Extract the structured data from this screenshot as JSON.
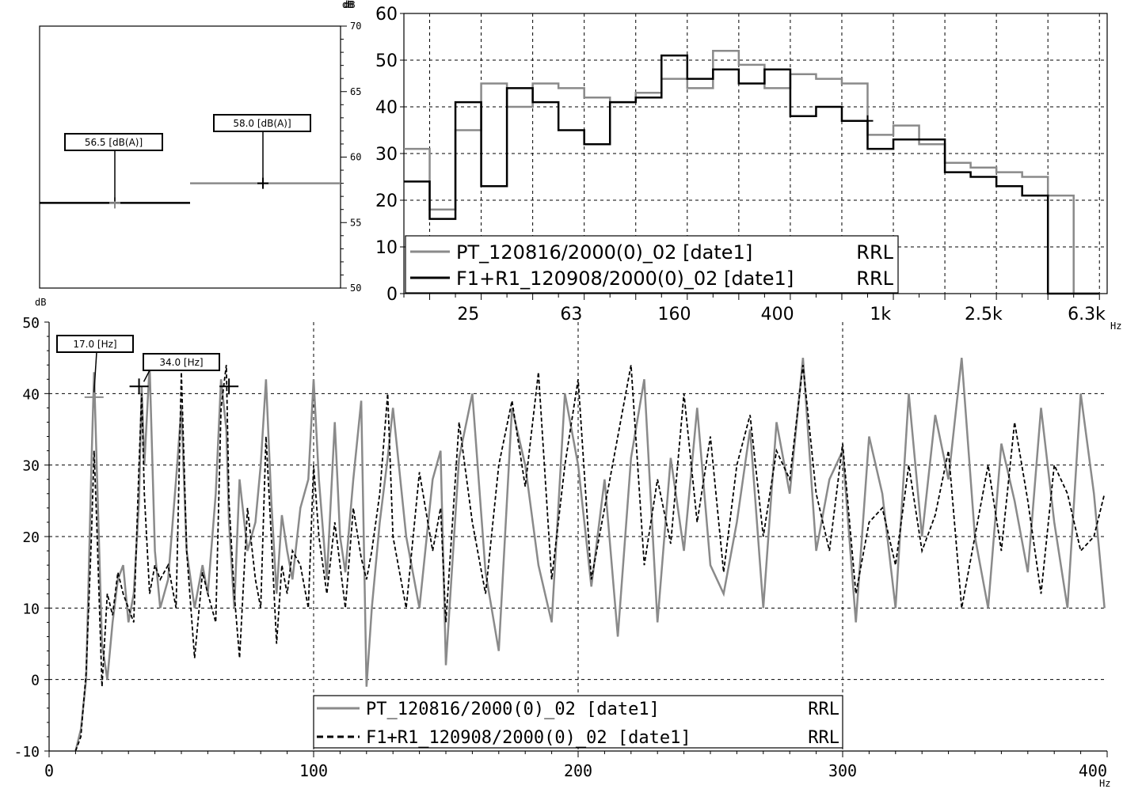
{
  "chart_data": [
    {
      "id": "overall",
      "type": "bar",
      "ylabel": "dB",
      "ylim": [
        50,
        70
      ],
      "ticks": [
        "50",
        "55",
        "60",
        "65",
        "70"
      ],
      "grid": false,
      "series": [
        {
          "name": "PT_120816/2000(0)_02 [date1] RRL",
          "value": 56.5,
          "label": "56.5  [dB(A)]",
          "color": "#000000"
        },
        {
          "name": "F1+R1_120908/2000(0)_02 [date1] RRL",
          "value": 58.0,
          "label": "58.0  [dB(A)]",
          "color": "#8a8a8a"
        }
      ]
    },
    {
      "id": "octave",
      "type": "line",
      "ylabel": "dB",
      "ylim": [
        0,
        60
      ],
      "yticks": [
        "0",
        "10",
        "20",
        "30",
        "40",
        "50",
        "60"
      ],
      "xscale": "log-bands",
      "xlabel": "Hz",
      "xticks": [
        "25",
        "63",
        "160",
        "400",
        "1k",
        "2.5k",
        "6.3k"
      ],
      "xtick_band_index": [
        2,
        6,
        10,
        14,
        18,
        22,
        26
      ],
      "grid": true,
      "legend_position": "bottom-left",
      "bands": [
        "16",
        "20",
        "25",
        "31.5",
        "40",
        "50",
        "63",
        "80",
        "100",
        "125",
        "160",
        "200",
        "250",
        "315",
        "400",
        "500",
        "630",
        "800",
        "1k",
        "1.25k",
        "1.6k",
        "2k",
        "2.5k",
        "3.15k",
        "4k",
        "5k",
        "6.3k"
      ],
      "series": [
        {
          "name": "PT_120816/2000(0)_02 [date1]",
          "tag": "RRL",
          "color": "#8a8a8a",
          "values": [
            31,
            18,
            35,
            45,
            40,
            45,
            44,
            42,
            41,
            43,
            46,
            44,
            52,
            49,
            44,
            47,
            46,
            45,
            34,
            36,
            32,
            28,
            27,
            26,
            25,
            21,
            0
          ]
        },
        {
          "name": "F1+R1_120908/2000(0)_02 [date1]",
          "tag": "RRL",
          "color": "#000000",
          "values": [
            24,
            16,
            41,
            23,
            44,
            41,
            35,
            32,
            41,
            42,
            51,
            46,
            48,
            45,
            48,
            38,
            40,
            37,
            31,
            33,
            33,
            26,
            25,
            23,
            21,
            0,
            0
          ]
        }
      ],
      "cursor": {
        "band": 18,
        "value": 37
      }
    },
    {
      "id": "narrowband",
      "type": "line",
      "ylabel": "dB",
      "xlabel": "Hz",
      "xlim": [
        0,
        400
      ],
      "ylim": [
        -10,
        50
      ],
      "xticks": [
        "0",
        "100",
        "200",
        "300",
        "400"
      ],
      "yticks": [
        "-10",
        "0",
        "10",
        "20",
        "30",
        "40",
        "50"
      ],
      "grid": true,
      "legend_position": "bottom-center",
      "series": [
        {
          "name": "PT_120816/2000(0)_02  [date1]",
          "tag": "RRL",
          "color": "#8a8a8a",
          "dash": "solid",
          "x": [
            10,
            12,
            14,
            16,
            17,
            18,
            20,
            22,
            24,
            26,
            28,
            30,
            32,
            34,
            35,
            36,
            38,
            40,
            42,
            45,
            48,
            50,
            52,
            55,
            58,
            60,
            63,
            65,
            67,
            68,
            70,
            72,
            75,
            78,
            80,
            82,
            84,
            86,
            88,
            90,
            92,
            95,
            98,
            100,
            102,
            105,
            108,
            110,
            112,
            115,
            118,
            120,
            122,
            125,
            128,
            130,
            135,
            140,
            145,
            148,
            150,
            155,
            160,
            165,
            170,
            175,
            180,
            185,
            190,
            195,
            200,
            205,
            210,
            215,
            220,
            225,
            230,
            235,
            240,
            245,
            250,
            255,
            260,
            265,
            270,
            275,
            280,
            285,
            290,
            295,
            300,
            305,
            310,
            315,
            320,
            325,
            330,
            335,
            340,
            345,
            350,
            355,
            360,
            365,
            370,
            375,
            380,
            385,
            390,
            395,
            399
          ],
          "y": [
            -10,
            -7,
            0,
            30,
            43,
            30,
            5,
            0,
            8,
            14,
            16,
            8,
            12,
            25,
            41,
            30,
            44,
            18,
            10,
            14,
            28,
            38,
            18,
            10,
            16,
            12,
            26,
            42,
            35,
            22,
            10,
            28,
            18,
            22,
            30,
            42,
            25,
            12,
            23,
            18,
            14,
            24,
            28,
            42,
            28,
            14,
            36,
            20,
            15,
            28,
            39,
            -1,
            10,
            22,
            31,
            38,
            20,
            10,
            28,
            32,
            2,
            31,
            40,
            15,
            4,
            38,
            30,
            16,
            8,
            40,
            30,
            13,
            28,
            6,
            31,
            42,
            8,
            31,
            18,
            38,
            16,
            12,
            22,
            35,
            10,
            36,
            26,
            45,
            18,
            28,
            32,
            8,
            34,
            26,
            10,
            40,
            20,
            37,
            28,
            45,
            20,
            10,
            33,
            25,
            15,
            38,
            22,
            10,
            40,
            26,
            10
          ]
        },
        {
          "name": "F1+R1_120908/2000(0)_02  [date1]",
          "tag": "RRL",
          "color": "#000000",
          "dash": "dashed",
          "x": [
            10,
            12,
            14,
            16,
            17,
            18,
            20,
            22,
            24,
            26,
            28,
            30,
            32,
            34,
            35,
            36,
            38,
            40,
            42,
            45,
            48,
            50,
            52,
            55,
            58,
            60,
            63,
            65,
            67,
            68,
            70,
            72,
            75,
            78,
            80,
            82,
            84,
            86,
            88,
            90,
            92,
            95,
            98,
            100,
            102,
            105,
            108,
            110,
            112,
            115,
            118,
            120,
            122,
            125,
            128,
            130,
            135,
            140,
            145,
            148,
            150,
            155,
            160,
            165,
            170,
            175,
            180,
            185,
            190,
            195,
            200,
            205,
            210,
            215,
            220,
            225,
            230,
            235,
            240,
            245,
            250,
            255,
            260,
            265,
            270,
            275,
            280,
            285,
            290,
            295,
            300,
            305,
            310,
            315,
            320,
            325,
            330,
            335,
            340,
            345,
            350,
            355,
            360,
            365,
            370,
            375,
            380,
            385,
            390,
            395,
            399
          ],
          "y": [
            -10,
            -8,
            1,
            20,
            32,
            22,
            -1,
            12,
            9,
            15,
            12,
            10,
            8,
            30,
            40,
            26,
            12,
            16,
            14,
            16,
            10,
            43,
            18,
            3,
            15,
            12,
            8,
            38,
            44,
            25,
            12,
            3,
            24,
            14,
            10,
            34,
            20,
            5,
            16,
            12,
            18,
            16,
            10,
            30,
            20,
            12,
            22,
            16,
            10,
            24,
            17,
            14,
            18,
            26,
            40,
            20,
            10,
            29,
            18,
            24,
            8,
            36,
            22,
            12,
            30,
            39,
            27,
            43,
            14,
            30,
            42,
            14,
            24,
            34,
            44,
            16,
            28,
            19,
            40,
            22,
            34,
            15,
            30,
            37,
            20,
            32,
            28,
            44,
            26,
            18,
            33,
            12,
            22,
            24,
            16,
            30,
            18,
            23,
            32,
            10,
            20,
            30,
            18,
            36,
            25,
            12,
            30,
            26,
            18,
            20,
            26
          ]
        }
      ],
      "markers": [
        {
          "x": 17,
          "y": 39.5,
          "label": "17.0  [Hz]"
        },
        {
          "x": 34,
          "y": 41,
          "label": "34.0  [Hz]"
        },
        {
          "x": 68,
          "y": 41,
          "label": ""
        }
      ]
    }
  ]
}
